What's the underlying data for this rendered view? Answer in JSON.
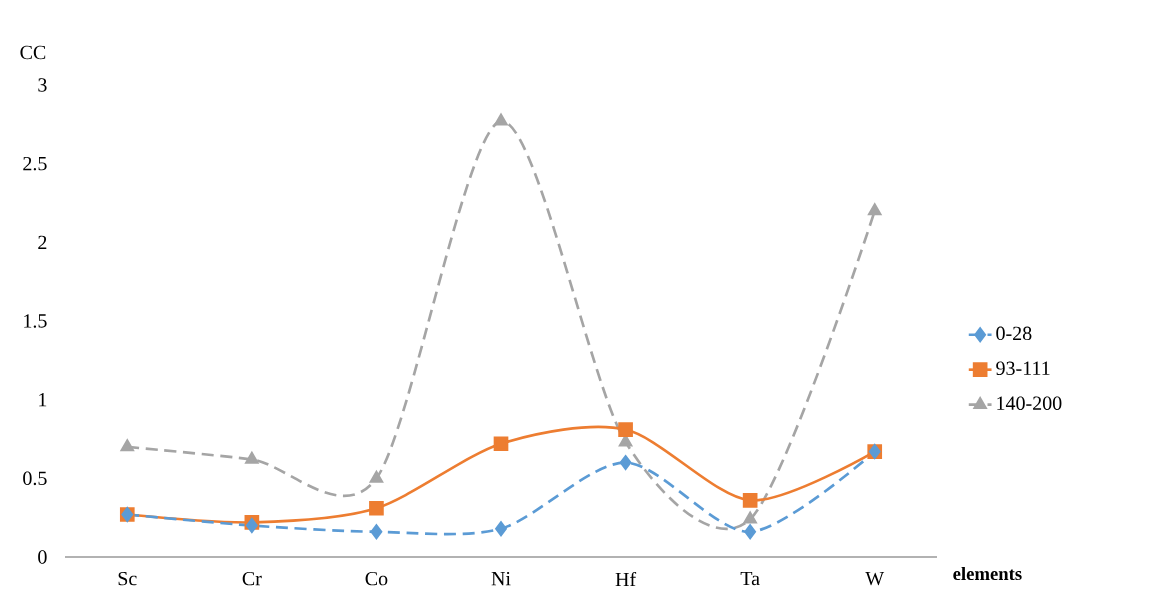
{
  "chart_data": {
    "type": "line",
    "ylabel": "CC",
    "xlabel": "elements",
    "categories": [
      "Sc",
      "Cr",
      "Co",
      "Ni",
      "Hf",
      "Ta",
      "W"
    ],
    "series": [
      {
        "name": "0-28",
        "color": "#5b9bd5",
        "marker": "diamond",
        "line_style": "dashed",
        "values": [
          0.27,
          0.2,
          0.16,
          0.18,
          0.6,
          0.16,
          0.67
        ]
      },
      {
        "name": "93-111",
        "color": "#ed7d31",
        "marker": "square",
        "line_style": "solid",
        "values": [
          0.27,
          0.22,
          0.31,
          0.72,
          0.81,
          0.36,
          0.67
        ]
      },
      {
        "name": "140-200",
        "color": "#a5a5a5",
        "marker": "triangle",
        "line_style": "dashed",
        "values": [
          0.7,
          0.62,
          0.5,
          2.77,
          0.73,
          0.24,
          2.2
        ]
      }
    ],
    "ylim": [
      0,
      3
    ],
    "yticks": [
      0,
      0.5,
      1,
      1.5,
      2,
      2.5,
      3
    ],
    "grid": false,
    "legend": "right"
  }
}
